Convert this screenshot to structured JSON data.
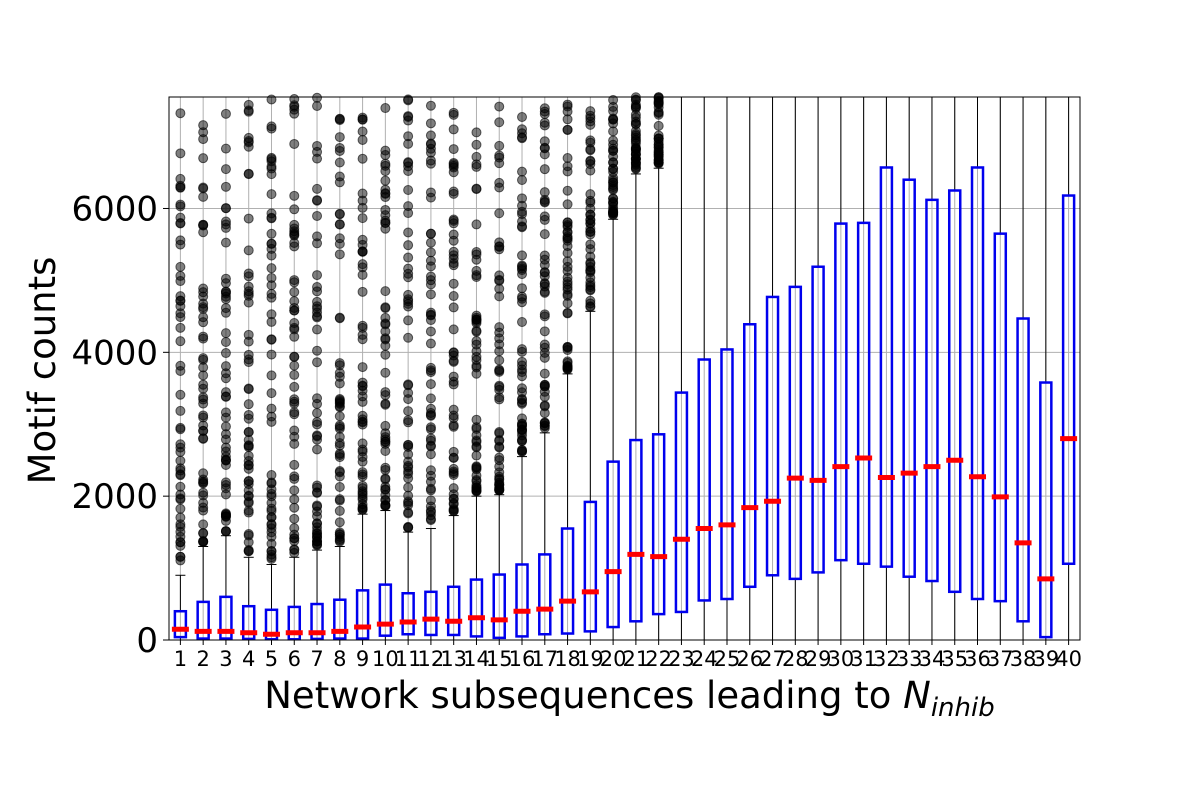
{
  "chart_data": {
    "type": "box",
    "xlabel": "Network subsequences leading to N_inhib",
    "xlabel_parts": {
      "main": "Network subsequences leading to ",
      "symbol": "N",
      "subscript": "inhib"
    },
    "ylabel": "Motif counts",
    "ylim": [
      0,
      7550
    ],
    "yticks": [
      0,
      2000,
      4000,
      6000
    ],
    "ytick_labels": [
      "0",
      "2000",
      "4000",
      "6000"
    ],
    "categories": [
      "1",
      "2",
      "3",
      "4",
      "5",
      "6",
      "7",
      "8",
      "9",
      "10",
      "11",
      "12",
      "13",
      "14",
      "15",
      "16",
      "17",
      "18",
      "19",
      "20",
      "21",
      "22",
      "23",
      "24",
      "25",
      "26",
      "27",
      "28",
      "29",
      "30",
      "31",
      "32",
      "33",
      "34",
      "35",
      "36",
      "37",
      "38",
      "39",
      "40"
    ],
    "grid": true,
    "colors": {
      "box": "#0000ee",
      "median": "#ff0000",
      "whisker": "#000000",
      "outlier": "#000000"
    },
    "boxes": [
      {
        "q1": 40,
        "median": 150,
        "q3": 400,
        "whisker_low": 0,
        "whisker_high": 900
      },
      {
        "q1": 20,
        "median": 120,
        "q3": 530,
        "whisker_low": 0,
        "whisker_high": 1300
      },
      {
        "q1": 20,
        "median": 120,
        "q3": 600,
        "whisker_low": 0,
        "whisker_high": 1450
      },
      {
        "q1": 15,
        "median": 100,
        "q3": 470,
        "whisker_low": 0,
        "whisker_high": 1150
      },
      {
        "q1": 10,
        "median": 80,
        "q3": 420,
        "whisker_low": 0,
        "whisker_high": 1050
      },
      {
        "q1": 10,
        "median": 100,
        "q3": 460,
        "whisker_low": 0,
        "whisker_high": 1150
      },
      {
        "q1": 15,
        "median": 100,
        "q3": 500,
        "whisker_low": 0,
        "whisker_high": 1250
      },
      {
        "q1": 20,
        "median": 120,
        "q3": 560,
        "whisker_low": 0,
        "whisker_high": 1300
      },
      {
        "q1": 20,
        "median": 180,
        "q3": 690,
        "whisker_low": 0,
        "whisker_high": 1750
      },
      {
        "q1": 60,
        "median": 220,
        "q3": 770,
        "whisker_low": 0,
        "whisker_high": 1800
      },
      {
        "q1": 80,
        "median": 250,
        "q3": 650,
        "whisker_low": 0,
        "whisker_high": 1500
      },
      {
        "q1": 70,
        "median": 290,
        "q3": 670,
        "whisker_low": 0,
        "whisker_high": 1550
      },
      {
        "q1": 70,
        "median": 260,
        "q3": 740,
        "whisker_low": 0,
        "whisker_high": 1730
      },
      {
        "q1": 50,
        "median": 310,
        "q3": 840,
        "whisker_low": 0,
        "whisker_high": 2000
      },
      {
        "q1": 30,
        "median": 280,
        "q3": 910,
        "whisker_low": 0,
        "whisker_high": 2020
      },
      {
        "q1": 50,
        "median": 400,
        "q3": 1050,
        "whisker_low": 0,
        "whisker_high": 2550
      },
      {
        "q1": 80,
        "median": 430,
        "q3": 1190,
        "whisker_low": 0,
        "whisker_high": 2880
      },
      {
        "q1": 90,
        "median": 540,
        "q3": 1550,
        "whisker_low": 0,
        "whisker_high": 3700
      },
      {
        "q1": 120,
        "median": 670,
        "q3": 1920,
        "whisker_low": 0,
        "whisker_high": 4570
      },
      {
        "q1": 180,
        "median": 950,
        "q3": 2480,
        "whisker_low": 0,
        "whisker_high": 5850
      },
      {
        "q1": 260,
        "median": 1190,
        "q3": 2780,
        "whisker_low": 0,
        "whisker_high": 6480
      },
      {
        "q1": 360,
        "median": 1160,
        "q3": 2860,
        "whisker_low": 0,
        "whisker_high": 6560
      },
      {
        "q1": 390,
        "median": 1400,
        "q3": 3440,
        "whisker_low": 0,
        "whisker_high": 7550
      },
      {
        "q1": 550,
        "median": 1550,
        "q3": 3900,
        "whisker_low": 0,
        "whisker_high": 7550
      },
      {
        "q1": 570,
        "median": 1600,
        "q3": 4040,
        "whisker_low": 0,
        "whisker_high": 7550
      },
      {
        "q1": 740,
        "median": 1840,
        "q3": 4390,
        "whisker_low": 0,
        "whisker_high": 7550
      },
      {
        "q1": 900,
        "median": 1930,
        "q3": 4770,
        "whisker_low": 0,
        "whisker_high": 7550
      },
      {
        "q1": 850,
        "median": 2250,
        "q3": 4910,
        "whisker_low": 0,
        "whisker_high": 7550
      },
      {
        "q1": 940,
        "median": 2220,
        "q3": 5190,
        "whisker_low": 0,
        "whisker_high": 7550
      },
      {
        "q1": 1110,
        "median": 2410,
        "q3": 5790,
        "whisker_low": 0,
        "whisker_high": 7550
      },
      {
        "q1": 1060,
        "median": 2530,
        "q3": 5800,
        "whisker_low": 0,
        "whisker_high": 7550
      },
      {
        "q1": 1020,
        "median": 2260,
        "q3": 6570,
        "whisker_low": 0,
        "whisker_high": 7550
      },
      {
        "q1": 880,
        "median": 2320,
        "q3": 6400,
        "whisker_low": 0,
        "whisker_high": 7550
      },
      {
        "q1": 820,
        "median": 2410,
        "q3": 6120,
        "whisker_low": 0,
        "whisker_high": 7550
      },
      {
        "q1": 670,
        "median": 2500,
        "q3": 6250,
        "whisker_low": 0,
        "whisker_high": 7550
      },
      {
        "q1": 570,
        "median": 2270,
        "q3": 6570,
        "whisker_low": 0,
        "whisker_high": 7550
      },
      {
        "q1": 540,
        "median": 1990,
        "q3": 5650,
        "whisker_low": 0,
        "whisker_high": 7550
      },
      {
        "q1": 260,
        "median": 1350,
        "q3": 4470,
        "whisker_low": 0,
        "whisker_high": 7550
      },
      {
        "q1": 40,
        "median": 850,
        "q3": 3580,
        "whisker_low": 0,
        "whisker_high": 7550
      },
      {
        "q1": 1060,
        "median": 2800,
        "q3": 6180,
        "whisker_low": 0,
        "whisker_high": 7550
      }
    ]
  }
}
